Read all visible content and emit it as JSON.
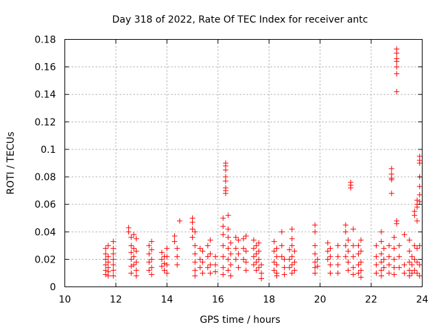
{
  "chart_data": {
    "type": "scatter",
    "title": "Day 318 of 2022, Rate Of TEC Index for receiver antc",
    "xlabel": "GPS time / hours",
    "ylabel": "ROTI / TECUs",
    "xlim": [
      10,
      24
    ],
    "ylim": [
      0,
      0.18
    ],
    "xticks": [
      "10",
      "12",
      "14",
      "16",
      "18",
      "20",
      "22",
      "24"
    ],
    "yticks": [
      "0",
      "0.02",
      "0.04",
      "0.06",
      "0.08",
      "0.1",
      "0.12",
      "0.14",
      "0.16",
      "0.18"
    ],
    "grid": true,
    "marker": "plus",
    "color": "#ff0000",
    "series": [
      {
        "points": [
          [
            11.6,
            0.028
          ],
          [
            11.6,
            0.024
          ],
          [
            11.6,
            0.02
          ],
          [
            11.6,
            0.016
          ],
          [
            11.6,
            0.012
          ],
          [
            11.6,
            0.009
          ],
          [
            11.7,
            0.03
          ],
          [
            11.7,
            0.022
          ],
          [
            11.7,
            0.018
          ],
          [
            11.7,
            0.014
          ],
          [
            11.7,
            0.011
          ],
          [
            11.7,
            0.008
          ],
          [
            11.9,
            0.033
          ],
          [
            11.9,
            0.028
          ],
          [
            11.9,
            0.024
          ],
          [
            11.9,
            0.02
          ],
          [
            11.9,
            0.016
          ],
          [
            11.9,
            0.012
          ],
          [
            11.9,
            0.008
          ],
          [
            12.5,
            0.043
          ],
          [
            12.5,
            0.04
          ],
          [
            12.6,
            0.036
          ],
          [
            12.6,
            0.03
          ],
          [
            12.6,
            0.025
          ],
          [
            12.6,
            0.02
          ],
          [
            12.6,
            0.015
          ],
          [
            12.6,
            0.01
          ],
          [
            12.7,
            0.038
          ],
          [
            12.7,
            0.028
          ],
          [
            12.7,
            0.022
          ],
          [
            12.7,
            0.016
          ],
          [
            12.8,
            0.035
          ],
          [
            12.8,
            0.026
          ],
          [
            12.8,
            0.018
          ],
          [
            12.8,
            0.012
          ],
          [
            12.8,
            0.008
          ],
          [
            13.3,
            0.03
          ],
          [
            13.3,
            0.024
          ],
          [
            13.3,
            0.018
          ],
          [
            13.3,
            0.012
          ],
          [
            13.4,
            0.033
          ],
          [
            13.4,
            0.027
          ],
          [
            13.4,
            0.02
          ],
          [
            13.4,
            0.014
          ],
          [
            13.4,
            0.009
          ],
          [
            13.8,
            0.025
          ],
          [
            13.8,
            0.02
          ],
          [
            13.8,
            0.015
          ],
          [
            13.9,
            0.022
          ],
          [
            13.9,
            0.017
          ],
          [
            13.9,
            0.012
          ],
          [
            14.0,
            0.028
          ],
          [
            14.0,
            0.022
          ],
          [
            14.0,
            0.016
          ],
          [
            14.0,
            0.01
          ],
          [
            14.3,
            0.037
          ],
          [
            14.3,
            0.033
          ],
          [
            14.4,
            0.028
          ],
          [
            14.4,
            0.022
          ],
          [
            14.4,
            0.016
          ],
          [
            14.5,
            0.048
          ],
          [
            15.0,
            0.05
          ],
          [
            15.0,
            0.047
          ],
          [
            15.0,
            0.042
          ],
          [
            15.0,
            0.036
          ],
          [
            15.1,
            0.04
          ],
          [
            15.1,
            0.03
          ],
          [
            15.1,
            0.024
          ],
          [
            15.1,
            0.018
          ],
          [
            15.1,
            0.012
          ],
          [
            15.1,
            0.008
          ],
          [
            15.3,
            0.028
          ],
          [
            15.3,
            0.02
          ],
          [
            15.3,
            0.014
          ],
          [
            15.4,
            0.026
          ],
          [
            15.4,
            0.018
          ],
          [
            15.4,
            0.01
          ],
          [
            15.6,
            0.03
          ],
          [
            15.6,
            0.022
          ],
          [
            15.6,
            0.014
          ],
          [
            15.7,
            0.034
          ],
          [
            15.7,
            0.024
          ],
          [
            15.7,
            0.016
          ],
          [
            15.7,
            0.01
          ],
          [
            15.9,
            0.022
          ],
          [
            15.9,
            0.016
          ],
          [
            15.9,
            0.011
          ],
          [
            16.2,
            0.05
          ],
          [
            16.2,
            0.044
          ],
          [
            16.2,
            0.038
          ],
          [
            16.2,
            0.03
          ],
          [
            16.2,
            0.022
          ],
          [
            16.2,
            0.014
          ],
          [
            16.2,
            0.009
          ],
          [
            16.3,
            0.09
          ],
          [
            16.3,
            0.088
          ],
          [
            16.3,
            0.085
          ],
          [
            16.3,
            0.08
          ],
          [
            16.3,
            0.077
          ],
          [
            16.3,
            0.072
          ],
          [
            16.3,
            0.07
          ],
          [
            16.3,
            0.068
          ],
          [
            16.4,
            0.052
          ],
          [
            16.4,
            0.042
          ],
          [
            16.4,
            0.036
          ],
          [
            16.4,
            0.028
          ],
          [
            16.4,
            0.02
          ],
          [
            16.4,
            0.012
          ],
          [
            16.5,
            0.032
          ],
          [
            16.5,
            0.024
          ],
          [
            16.5,
            0.016
          ],
          [
            16.5,
            0.008
          ],
          [
            16.7,
            0.036
          ],
          [
            16.7,
            0.028
          ],
          [
            16.7,
            0.02
          ],
          [
            16.8,
            0.034
          ],
          [
            16.8,
            0.024
          ],
          [
            16.8,
            0.014
          ],
          [
            17.0,
            0.035
          ],
          [
            17.0,
            0.028
          ],
          [
            17.0,
            0.02
          ],
          [
            17.1,
            0.037
          ],
          [
            17.1,
            0.026
          ],
          [
            17.1,
            0.018
          ],
          [
            17.1,
            0.012
          ],
          [
            17.4,
            0.034
          ],
          [
            17.4,
            0.028
          ],
          [
            17.4,
            0.022
          ],
          [
            17.4,
            0.016
          ],
          [
            17.5,
            0.03
          ],
          [
            17.5,
            0.024
          ],
          [
            17.5,
            0.018
          ],
          [
            17.5,
            0.012
          ],
          [
            17.6,
            0.032
          ],
          [
            17.6,
            0.026
          ],
          [
            17.6,
            0.02
          ],
          [
            17.6,
            0.014
          ],
          [
            17.7,
            0.016
          ],
          [
            17.7,
            0.01
          ],
          [
            17.7,
            0.006
          ],
          [
            18.2,
            0.033
          ],
          [
            18.2,
            0.026
          ],
          [
            18.2,
            0.018
          ],
          [
            18.2,
            0.012
          ],
          [
            18.3,
            0.028
          ],
          [
            18.3,
            0.022
          ],
          [
            18.3,
            0.016
          ],
          [
            18.3,
            0.01
          ],
          [
            18.3,
            0.008
          ],
          [
            18.5,
            0.04
          ],
          [
            18.5,
            0.03
          ],
          [
            18.5,
            0.022
          ],
          [
            18.6,
            0.02
          ],
          [
            18.6,
            0.014
          ],
          [
            18.6,
            0.009
          ],
          [
            18.8,
            0.027
          ],
          [
            18.8,
            0.02
          ],
          [
            18.8,
            0.014
          ],
          [
            18.9,
            0.042
          ],
          [
            18.9,
            0.035
          ],
          [
            18.9,
            0.03
          ],
          [
            18.9,
            0.022
          ],
          [
            18.9,
            0.016
          ],
          [
            18.9,
            0.01
          ],
          [
            19.0,
            0.026
          ],
          [
            19.0,
            0.018
          ],
          [
            19.0,
            0.012
          ],
          [
            19.8,
            0.045
          ],
          [
            19.8,
            0.04
          ],
          [
            19.8,
            0.03
          ],
          [
            19.8,
            0.024
          ],
          [
            19.8,
            0.018
          ],
          [
            19.8,
            0.014
          ],
          [
            19.8,
            0.01
          ],
          [
            19.9,
            0.02
          ],
          [
            19.9,
            0.015
          ],
          [
            20.3,
            0.032
          ],
          [
            20.3,
            0.026
          ],
          [
            20.3,
            0.02
          ],
          [
            20.4,
            0.028
          ],
          [
            20.4,
            0.022
          ],
          [
            20.4,
            0.016
          ],
          [
            20.4,
            0.01
          ],
          [
            20.7,
            0.03
          ],
          [
            20.7,
            0.022
          ],
          [
            20.7,
            0.016
          ],
          [
            20.7,
            0.01
          ],
          [
            21.0,
            0.045
          ],
          [
            21.0,
            0.04
          ],
          [
            21.0,
            0.03
          ],
          [
            21.0,
            0.022
          ],
          [
            21.1,
            0.034
          ],
          [
            21.1,
            0.026
          ],
          [
            21.1,
            0.018
          ],
          [
            21.1,
            0.012
          ],
          [
            21.2,
            0.076
          ],
          [
            21.2,
            0.074
          ],
          [
            21.2,
            0.072
          ],
          [
            21.3,
            0.042
          ],
          [
            21.3,
            0.03
          ],
          [
            21.3,
            0.022
          ],
          [
            21.3,
            0.014
          ],
          [
            21.3,
            0.009
          ],
          [
            21.5,
            0.03
          ],
          [
            21.5,
            0.024
          ],
          [
            21.5,
            0.016
          ],
          [
            21.5,
            0.01
          ],
          [
            21.6,
            0.034
          ],
          [
            21.6,
            0.026
          ],
          [
            21.6,
            0.018
          ],
          [
            21.6,
            0.012
          ],
          [
            21.6,
            0.007
          ],
          [
            22.2,
            0.03
          ],
          [
            22.2,
            0.022
          ],
          [
            22.2,
            0.016
          ],
          [
            22.2,
            0.01
          ],
          [
            22.4,
            0.04
          ],
          [
            22.4,
            0.033
          ],
          [
            22.4,
            0.024
          ],
          [
            22.4,
            0.018
          ],
          [
            22.4,
            0.012
          ],
          [
            22.4,
            0.008
          ],
          [
            22.5,
            0.028
          ],
          [
            22.5,
            0.02
          ],
          [
            22.5,
            0.014
          ],
          [
            22.7,
            0.03
          ],
          [
            22.7,
            0.022
          ],
          [
            22.7,
            0.016
          ],
          [
            22.7,
            0.01
          ],
          [
            22.8,
            0.086
          ],
          [
            22.8,
            0.082
          ],
          [
            22.8,
            0.079
          ],
          [
            22.8,
            0.078
          ],
          [
            22.8,
            0.068
          ],
          [
            22.9,
            0.036
          ],
          [
            22.9,
            0.028
          ],
          [
            22.9,
            0.02
          ],
          [
            22.9,
            0.014
          ],
          [
            22.9,
            0.009
          ],
          [
            23.0,
            0.173
          ],
          [
            23.0,
            0.17
          ],
          [
            23.0,
            0.166
          ],
          [
            23.0,
            0.164
          ],
          [
            23.0,
            0.16
          ],
          [
            23.0,
            0.155
          ],
          [
            23.0,
            0.142
          ],
          [
            23.0,
            0.048
          ],
          [
            23.0,
            0.046
          ],
          [
            23.1,
            0.03
          ],
          [
            23.1,
            0.022
          ],
          [
            23.1,
            0.014
          ],
          [
            23.3,
            0.038
          ],
          [
            23.3,
            0.016
          ],
          [
            23.3,
            0.01
          ],
          [
            23.5,
            0.034
          ],
          [
            23.5,
            0.026
          ],
          [
            23.5,
            0.018
          ],
          [
            23.5,
            0.012
          ],
          [
            23.5,
            0.008
          ],
          [
            23.6,
            0.022
          ],
          [
            23.6,
            0.016
          ],
          [
            23.6,
            0.01
          ],
          [
            23.7,
            0.055
          ],
          [
            23.7,
            0.052
          ],
          [
            23.7,
            0.03
          ],
          [
            23.7,
            0.02
          ],
          [
            23.7,
            0.012
          ],
          [
            23.8,
            0.063
          ],
          [
            23.8,
            0.06
          ],
          [
            23.8,
            0.058
          ],
          [
            23.8,
            0.048
          ],
          [
            23.8,
            0.028
          ],
          [
            23.8,
            0.018
          ],
          [
            23.8,
            0.01
          ],
          [
            23.9,
            0.095
          ],
          [
            23.9,
            0.092
          ],
          [
            23.9,
            0.09
          ],
          [
            23.9,
            0.08
          ],
          [
            23.9,
            0.073
          ],
          [
            23.9,
            0.067
          ],
          [
            23.9,
            0.062
          ],
          [
            23.9,
            0.03
          ],
          [
            23.9,
            0.016
          ],
          [
            23.9,
            0.008
          ]
        ]
      }
    ]
  }
}
